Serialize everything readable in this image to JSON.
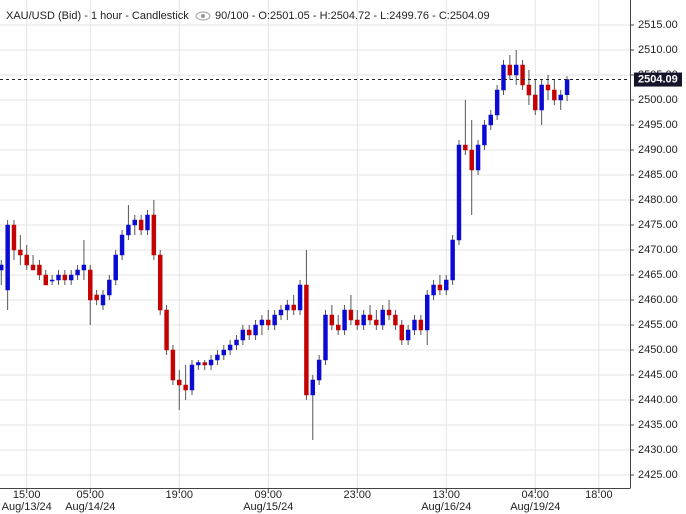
{
  "chart_data": {
    "type": "candlestick",
    "title": "XAU/USD (Bid) - 1 hour - Candlestick",
    "subtitle": "90/100 - O:2501.05 - H:2504.72 - L:2499.76 - C:2504.09",
    "up_color": "#0a0ad2",
    "down_color": "#c40000",
    "grid": true,
    "last_price": 2504.09,
    "ylim": [
      2422.4,
      2520
    ],
    "yticks": [
      {
        "value": 2425,
        "label": "2425.00"
      },
      {
        "value": 2430,
        "label": "2430.00"
      },
      {
        "value": 2435,
        "label": "2435.00"
      },
      {
        "value": 2440,
        "label": "2440.00"
      },
      {
        "value": 2445,
        "label": "2445.00"
      },
      {
        "value": 2450,
        "label": "2450.00"
      },
      {
        "value": 2455,
        "label": "2455.00"
      },
      {
        "value": 2460,
        "label": "2460.00"
      },
      {
        "value": 2465,
        "label": "2465.00"
      },
      {
        "value": 2470,
        "label": "2470.00"
      },
      {
        "value": 2475,
        "label": "2475.00"
      },
      {
        "value": 2480,
        "label": "2480.00"
      },
      {
        "value": 2485,
        "label": "2485.00"
      },
      {
        "value": 2490,
        "label": "2490.00"
      },
      {
        "value": 2495,
        "label": "2495.00"
      },
      {
        "value": 2500,
        "label": "2500.00"
      },
      {
        "value": 2505,
        "label": "2505.00"
      },
      {
        "value": 2510,
        "label": "2510.00"
      },
      {
        "value": 2515,
        "label": "2515.00"
      }
    ],
    "xlim": [
      -0.2,
      98.9
    ],
    "xticks": [
      {
        "value": 4,
        "label": "15:00"
      },
      {
        "value": 14,
        "label": "05:00"
      },
      {
        "value": 28,
        "label": "19:00"
      },
      {
        "value": 42,
        "label": "09:00"
      },
      {
        "value": 56,
        "label": "23:00"
      },
      {
        "value": 70,
        "label": "13:00"
      },
      {
        "value": 84,
        "label": "04:00"
      },
      {
        "value": 94,
        "label": "18:00"
      }
    ],
    "xtick_dates": [
      {
        "value": 4,
        "label": "Aug/13/24"
      },
      {
        "value": 14,
        "label": "Aug/14/24"
      },
      {
        "value": 42,
        "label": "Aug/15/24"
      },
      {
        "value": 70,
        "label": "Aug/16/24"
      },
      {
        "value": 84,
        "label": "Aug/19/24"
      }
    ],
    "open": [
      2466,
      2462,
      2475,
      2470,
      2469,
      2467,
      2467,
      2465,
      2464,
      2464,
      2465,
      2464,
      2465,
      2466,
      2466,
      2461,
      2459,
      2461,
      2464,
      2469,
      2473,
      2475,
      2476,
      2474,
      2477,
      2469,
      2458,
      2450,
      2444,
      2443,
      2442,
      2447,
      2447.5,
      2447,
      2448,
      2449,
      2450,
      2451,
      2452,
      2454,
      2453,
      2455,
      2456,
      2455,
      2457,
      2458,
      2459,
      2458,
      2463,
      2441,
      2444,
      2448,
      2457,
      2455,
      2454,
      2458,
      2456,
      2455,
      2457,
      2456,
      2455,
      2458,
      2457,
      2455,
      2452,
      2454,
      2456,
      2454,
      2461,
      2463,
      2462,
      2464,
      2472,
      2491,
      2490,
      2486,
      2491,
      2495,
      2497,
      2502,
      2507,
      2505,
      2507,
      2503,
      2501,
      2498,
      2503,
      2502,
      2500,
      2501.05
    ],
    "high": [
      2468,
      2476,
      2476,
      2473,
      2471,
      2469,
      2468,
      2466,
      2465,
      2466,
      2466,
      2466,
      2467,
      2472,
      2467,
      2462,
      2462,
      2465,
      2470,
      2474,
      2479,
      2477,
      2477,
      2478,
      2480,
      2470,
      2459,
      2451,
      2446,
      2447,
      2448,
      2448,
      2448,
      2449,
      2450,
      2451,
      2452,
      2453,
      2455,
      2455,
      2456,
      2457,
      2458,
      2458,
      2459,
      2460,
      2461,
      2464,
      2470,
      2445,
      2449,
      2458,
      2459,
      2457,
      2459,
      2461,
      2458,
      2458,
      2459,
      2458,
      2459,
      2460,
      2458,
      2456,
      2455,
      2457,
      2457,
      2462,
      2464,
      2465,
      2465,
      2473,
      2492,
      2500,
      2496,
      2492,
      2496,
      2498,
      2503,
      2508,
      2509,
      2510,
      2508,
      2506,
      2504,
      2504,
      2505,
      2504,
      2502,
      2504.72
    ],
    "low": [
      2463,
      2458,
      2468,
      2467,
      2466,
      2466,
      2464,
      2463,
      2463,
      2463,
      2463,
      2463,
      2464,
      2464,
      2455,
      2459,
      2458,
      2460,
      2463,
      2468,
      2472,
      2473,
      2473,
      2473,
      2468,
      2457,
      2449,
      2443,
      2438,
      2440,
      2441,
      2446,
      2446,
      2446,
      2447,
      2448,
      2449,
      2450,
      2451,
      2452,
      2452,
      2453,
      2454,
      2454,
      2456,
      2456,
      2457,
      2457,
      2440,
      2432,
      2443,
      2447,
      2454,
      2453,
      2453,
      2455,
      2454,
      2454,
      2455,
      2454,
      2454,
      2456,
      2454,
      2451,
      2451,
      2453,
      2453,
      2451,
      2460,
      2461,
      2461,
      2463,
      2471,
      2489,
      2477,
      2485,
      2490,
      2494,
      2496,
      2501,
      2504,
      2503,
      2502,
      2499,
      2497,
      2495,
      2500,
      2499,
      2498,
      2499.76
    ],
    "close": [
      2467,
      2475,
      2470,
      2469,
      2467,
      2466,
      2465,
      2463,
      2464,
      2465,
      2464,
      2465,
      2466,
      2467,
      2460,
      2460,
      2461,
      2464,
      2469,
      2473,
      2475,
      2476,
      2474,
      2477,
      2469,
      2458,
      2450,
      2444,
      2443,
      2442,
      2447,
      2447.5,
      2447,
      2448,
      2449,
      2450,
      2451,
      2452,
      2454,
      2453,
      2455,
      2456,
      2455,
      2457,
      2458,
      2459,
      2458,
      2463,
      2441,
      2444,
      2448,
      2457,
      2455,
      2454,
      2458,
      2456,
      2455,
      2457,
      2456,
      2455,
      2458,
      2457,
      2455,
      2452,
      2454,
      2456,
      2454,
      2461,
      2463,
      2462,
      2464,
      2472,
      2491,
      2490,
      2486,
      2491,
      2495,
      2497,
      2502,
      2507,
      2505,
      2507,
      2503,
      2501,
      2498,
      2503,
      2502,
      2500,
      2501,
      2504.09
    ]
  }
}
